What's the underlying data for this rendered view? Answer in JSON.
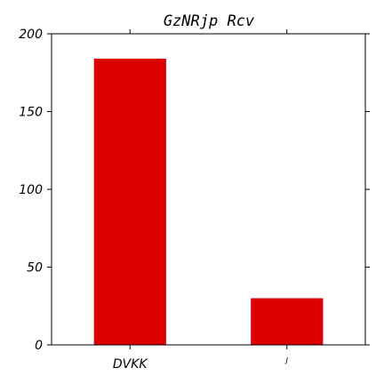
{
  "chart_data": {
    "type": "bar",
    "title": "GzNRjp  Rcv",
    "xlabel": "",
    "ylabel": "",
    "categories": [
      "DVKK",
      "J"
    ],
    "values": [
      184,
      30
    ],
    "ylim": [
      0,
      200
    ],
    "yticks": [
      0,
      50,
      100,
      150,
      200
    ],
    "grid": false,
    "bar_color": "#dd0000"
  }
}
